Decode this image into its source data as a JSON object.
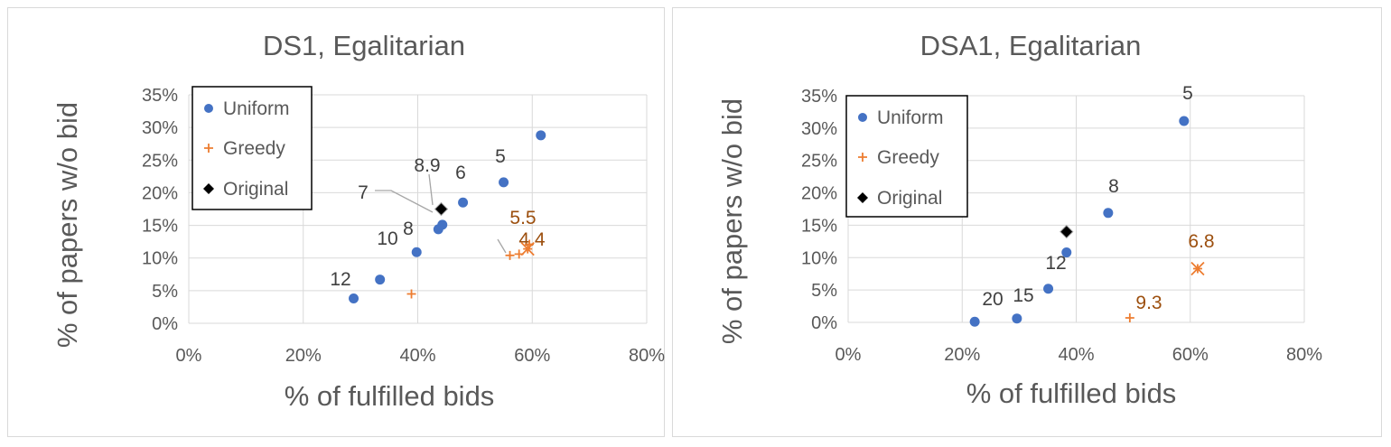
{
  "legend_labels": {
    "uniform": "Uniform",
    "greedy": "Greedy",
    "original": "Original"
  },
  "colors": {
    "uniform": "#4472c4",
    "greedy": "#ed7d31",
    "original": "#000000",
    "grid": "#d9d9d9"
  },
  "chart_data": [
    {
      "type": "scatter",
      "title": "DS1, Egalitarian",
      "xlabel": "% of fulfilled bids",
      "ylabel": "% of papers w/o bid",
      "xlim": [
        0,
        80
      ],
      "ylim": [
        0,
        35
      ],
      "x_ticks": [
        "0%",
        "20%",
        "40%",
        "60%",
        "80%"
      ],
      "y_ticks": [
        "0%",
        "5%",
        "10%",
        "15%",
        "20%",
        "25%",
        "30%",
        "35%"
      ],
      "grid": true,
      "legend": "top-left",
      "series": [
        {
          "name": "Uniform",
          "marker": "circle",
          "points": [
            {
              "x": 28.8,
              "y": 3.8
            },
            {
              "x": 33.4,
              "y": 6.7
            },
            {
              "x": 39.8,
              "y": 10.9
            },
            {
              "x": 43.6,
              "y": 14.4
            },
            {
              "x": 44.3,
              "y": 15.1
            },
            {
              "x": 47.9,
              "y": 18.5
            },
            {
              "x": 55.0,
              "y": 21.6
            },
            {
              "x": 61.5,
              "y": 28.8
            }
          ]
        },
        {
          "name": "Greedy",
          "marker": "plus",
          "points": [
            {
              "x": 38.9,
              "y": 4.5
            },
            {
              "x": 56.1,
              "y": 10.4
            },
            {
              "x": 57.7,
              "y": 10.6
            },
            {
              "x": 59.2,
              "y": 11.4
            },
            {
              "x": 59.5,
              "y": 12.1
            }
          ]
        },
        {
          "name": "Original",
          "marker": "diamond",
          "points": [
            {
              "x": 44.1,
              "y": 17.5
            }
          ]
        }
      ],
      "annotations": [
        {
          "text": "12",
          "color": "blue"
        },
        {
          "text": "10",
          "color": "blue"
        },
        {
          "text": "8",
          "color": "blue"
        },
        {
          "text": "7",
          "color": "blue"
        },
        {
          "text": "8.9",
          "color": "blue"
        },
        {
          "text": "6",
          "color": "blue"
        },
        {
          "text": "5",
          "color": "blue"
        },
        {
          "text": "5.5",
          "color": "orange"
        },
        {
          "text": "4.4",
          "color": "orange"
        }
      ]
    },
    {
      "type": "scatter",
      "title": "DSA1, Egalitarian",
      "xlabel": "% of fulfilled bids",
      "ylabel": "% of papers w/o bid",
      "xlim": [
        0,
        80
      ],
      "ylim": [
        0,
        35
      ],
      "x_ticks": [
        "0%",
        "20%",
        "40%",
        "60%",
        "80%"
      ],
      "y_ticks": [
        "0%",
        "5%",
        "10%",
        "15%",
        "20%",
        "25%",
        "30%",
        "35%"
      ],
      "grid": true,
      "legend": "top-left",
      "series": [
        {
          "name": "Uniform",
          "marker": "circle",
          "points": [
            {
              "x": 22.2,
              "y": 0.1
            },
            {
              "x": 29.6,
              "y": 0.6
            },
            {
              "x": 35.1,
              "y": 5.2
            },
            {
              "x": 38.3,
              "y": 10.8
            },
            {
              "x": 45.6,
              "y": 16.9
            },
            {
              "x": 58.9,
              "y": 31.1
            }
          ]
        },
        {
          "name": "Greedy",
          "marker": "plus",
          "points": [
            {
              "x": 49.4,
              "y": 0.7
            },
            {
              "x": 61.3,
              "y": 8.3
            }
          ]
        },
        {
          "name": "Original",
          "marker": "diamond",
          "points": [
            {
              "x": 38.3,
              "y": 14.0
            }
          ]
        }
      ],
      "annotations": [
        {
          "text": "20",
          "color": "blue"
        },
        {
          "text": "15",
          "color": "blue"
        },
        {
          "text": "12",
          "color": "blue"
        },
        {
          "text": "8",
          "color": "blue"
        },
        {
          "text": "5",
          "color": "blue"
        },
        {
          "text": "6.8",
          "color": "orange"
        },
        {
          "text": "9.3",
          "color": "orange"
        }
      ]
    }
  ]
}
